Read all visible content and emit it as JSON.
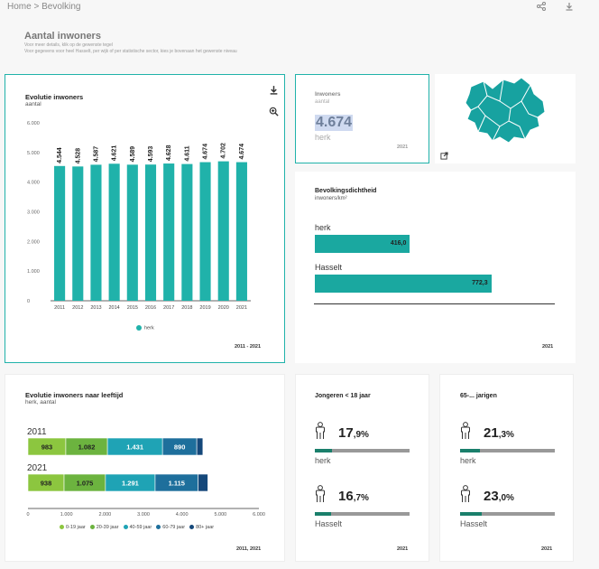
{
  "breadcrumb": {
    "home": "Home",
    "separator": ">",
    "current": "Bevolking"
  },
  "header": {
    "title": "Aantal inwoners",
    "subtitle_1": "Voor meer details, klik op de gewenste tegel",
    "subtitle_2": "Voor gegevens voor heel Hasselt, per wijk of per statistische sector, kies je bovenaan het gewenste niveau"
  },
  "icons": {
    "share": "share-icon",
    "download": "download-icon",
    "zoom": "zoom-icon",
    "external": "external-link-icon"
  },
  "evolutie": {
    "title": "Evolutie inwoners",
    "subtitle": "aantal",
    "legend": "herk",
    "period": "2011 - 2021",
    "chart_data": {
      "type": "bar",
      "title": "Evolutie inwoners",
      "ylabel": "aantal",
      "categories": [
        "2011",
        "2012",
        "2013",
        "2014",
        "2015",
        "2016",
        "2017",
        "2018",
        "2019",
        "2020",
        "2021"
      ],
      "values": [
        4544,
        4528,
        4587,
        4621,
        4589,
        4593,
        4628,
        4611,
        4674,
        4702,
        4674
      ],
      "value_labels": [
        "4.544",
        "4.528",
        "4.587",
        "4.621",
        "4.589",
        "4.593",
        "4.628",
        "4.611",
        "4.674",
        "4.702",
        "4.674"
      ],
      "yticks": [
        0,
        1000,
        2000,
        3000,
        4000,
        5000,
        6000
      ],
      "ytick_labels": [
        "0",
        "1.000",
        "2.000",
        "3.000",
        "4.000",
        "5.000",
        "6.000"
      ],
      "ylim": [
        0,
        6000
      ],
      "color": "#20b2aa"
    }
  },
  "inwoners": {
    "title": "Inwoners",
    "subtitle": "aantal",
    "value": "4.674",
    "area": "herk",
    "year": "2021"
  },
  "dichtheid": {
    "title": "Bevolkingsdichtheid",
    "subtitle": "inwoners/km²",
    "year": "2021",
    "chart_data": {
      "type": "bar",
      "orientation": "horizontal",
      "categories": [
        "herk",
        "Hasselt"
      ],
      "values": [
        416.0,
        772.3
      ],
      "value_labels": [
        "416,0",
        "772,3"
      ],
      "xlim": [
        0,
        1050
      ],
      "color": "#1aa8a0"
    }
  },
  "leeftijd": {
    "title": "Evolutie inwoners naar leeftijd",
    "subtitle": "herk, aantal",
    "year": "2011, 2021",
    "chart_data": {
      "type": "bar",
      "stacked": true,
      "orientation": "horizontal",
      "categories": [
        "2011",
        "2021"
      ],
      "series": [
        {
          "name": "0-19 jaar",
          "values": [
            983,
            938
          ],
          "labels": [
            "983",
            "938"
          ],
          "color": "#8cc63f"
        },
        {
          "name": "20-39 jaar",
          "values": [
            1082,
            1075
          ],
          "labels": [
            "1.082",
            "1.075"
          ],
          "color": "#6cb33f"
        },
        {
          "name": "40-59 jaar",
          "values": [
            1431,
            1291
          ],
          "labels": [
            "1.431",
            "1.291"
          ],
          "color": "#1fa3b5"
        },
        {
          "name": "60-79 jaar",
          "values": [
            890,
            1115
          ],
          "labels": [
            "890",
            "1.115"
          ],
          "color": "#1e6f9c"
        },
        {
          "name": "80+ jaar",
          "values": [
            158,
            255
          ],
          "labels": [
            "",
            ""
          ],
          "color": "#15487a"
        }
      ],
      "xticks": [
        0,
        1000,
        2000,
        3000,
        4000,
        5000,
        6000
      ],
      "xtick_labels": [
        "0",
        "1.000",
        "2.000",
        "3.000",
        "4.000",
        "5.000",
        "6.000"
      ],
      "xlim": [
        0,
        6000
      ]
    }
  },
  "jongeren": {
    "title": "Jongeren < 18 jaar",
    "year": "2021",
    "rows": [
      {
        "int": "17",
        "dec": ",9%",
        "value": 17.9,
        "area": "herk"
      },
      {
        "int": "16",
        "dec": ",7%",
        "value": 16.7,
        "area": "Hasselt"
      }
    ]
  },
  "senioren": {
    "title": "65-... jarigen",
    "year": "2021",
    "rows": [
      {
        "int": "21",
        "dec": ",3%",
        "value": 21.3,
        "area": "herk"
      },
      {
        "int": "23",
        "dec": ",0%",
        "value": 23.0,
        "area": "Hasselt"
      }
    ]
  },
  "colors": {
    "accent": "#20b2aa",
    "dark_teal": "#1a7f6b",
    "map": "#17a2a0"
  }
}
